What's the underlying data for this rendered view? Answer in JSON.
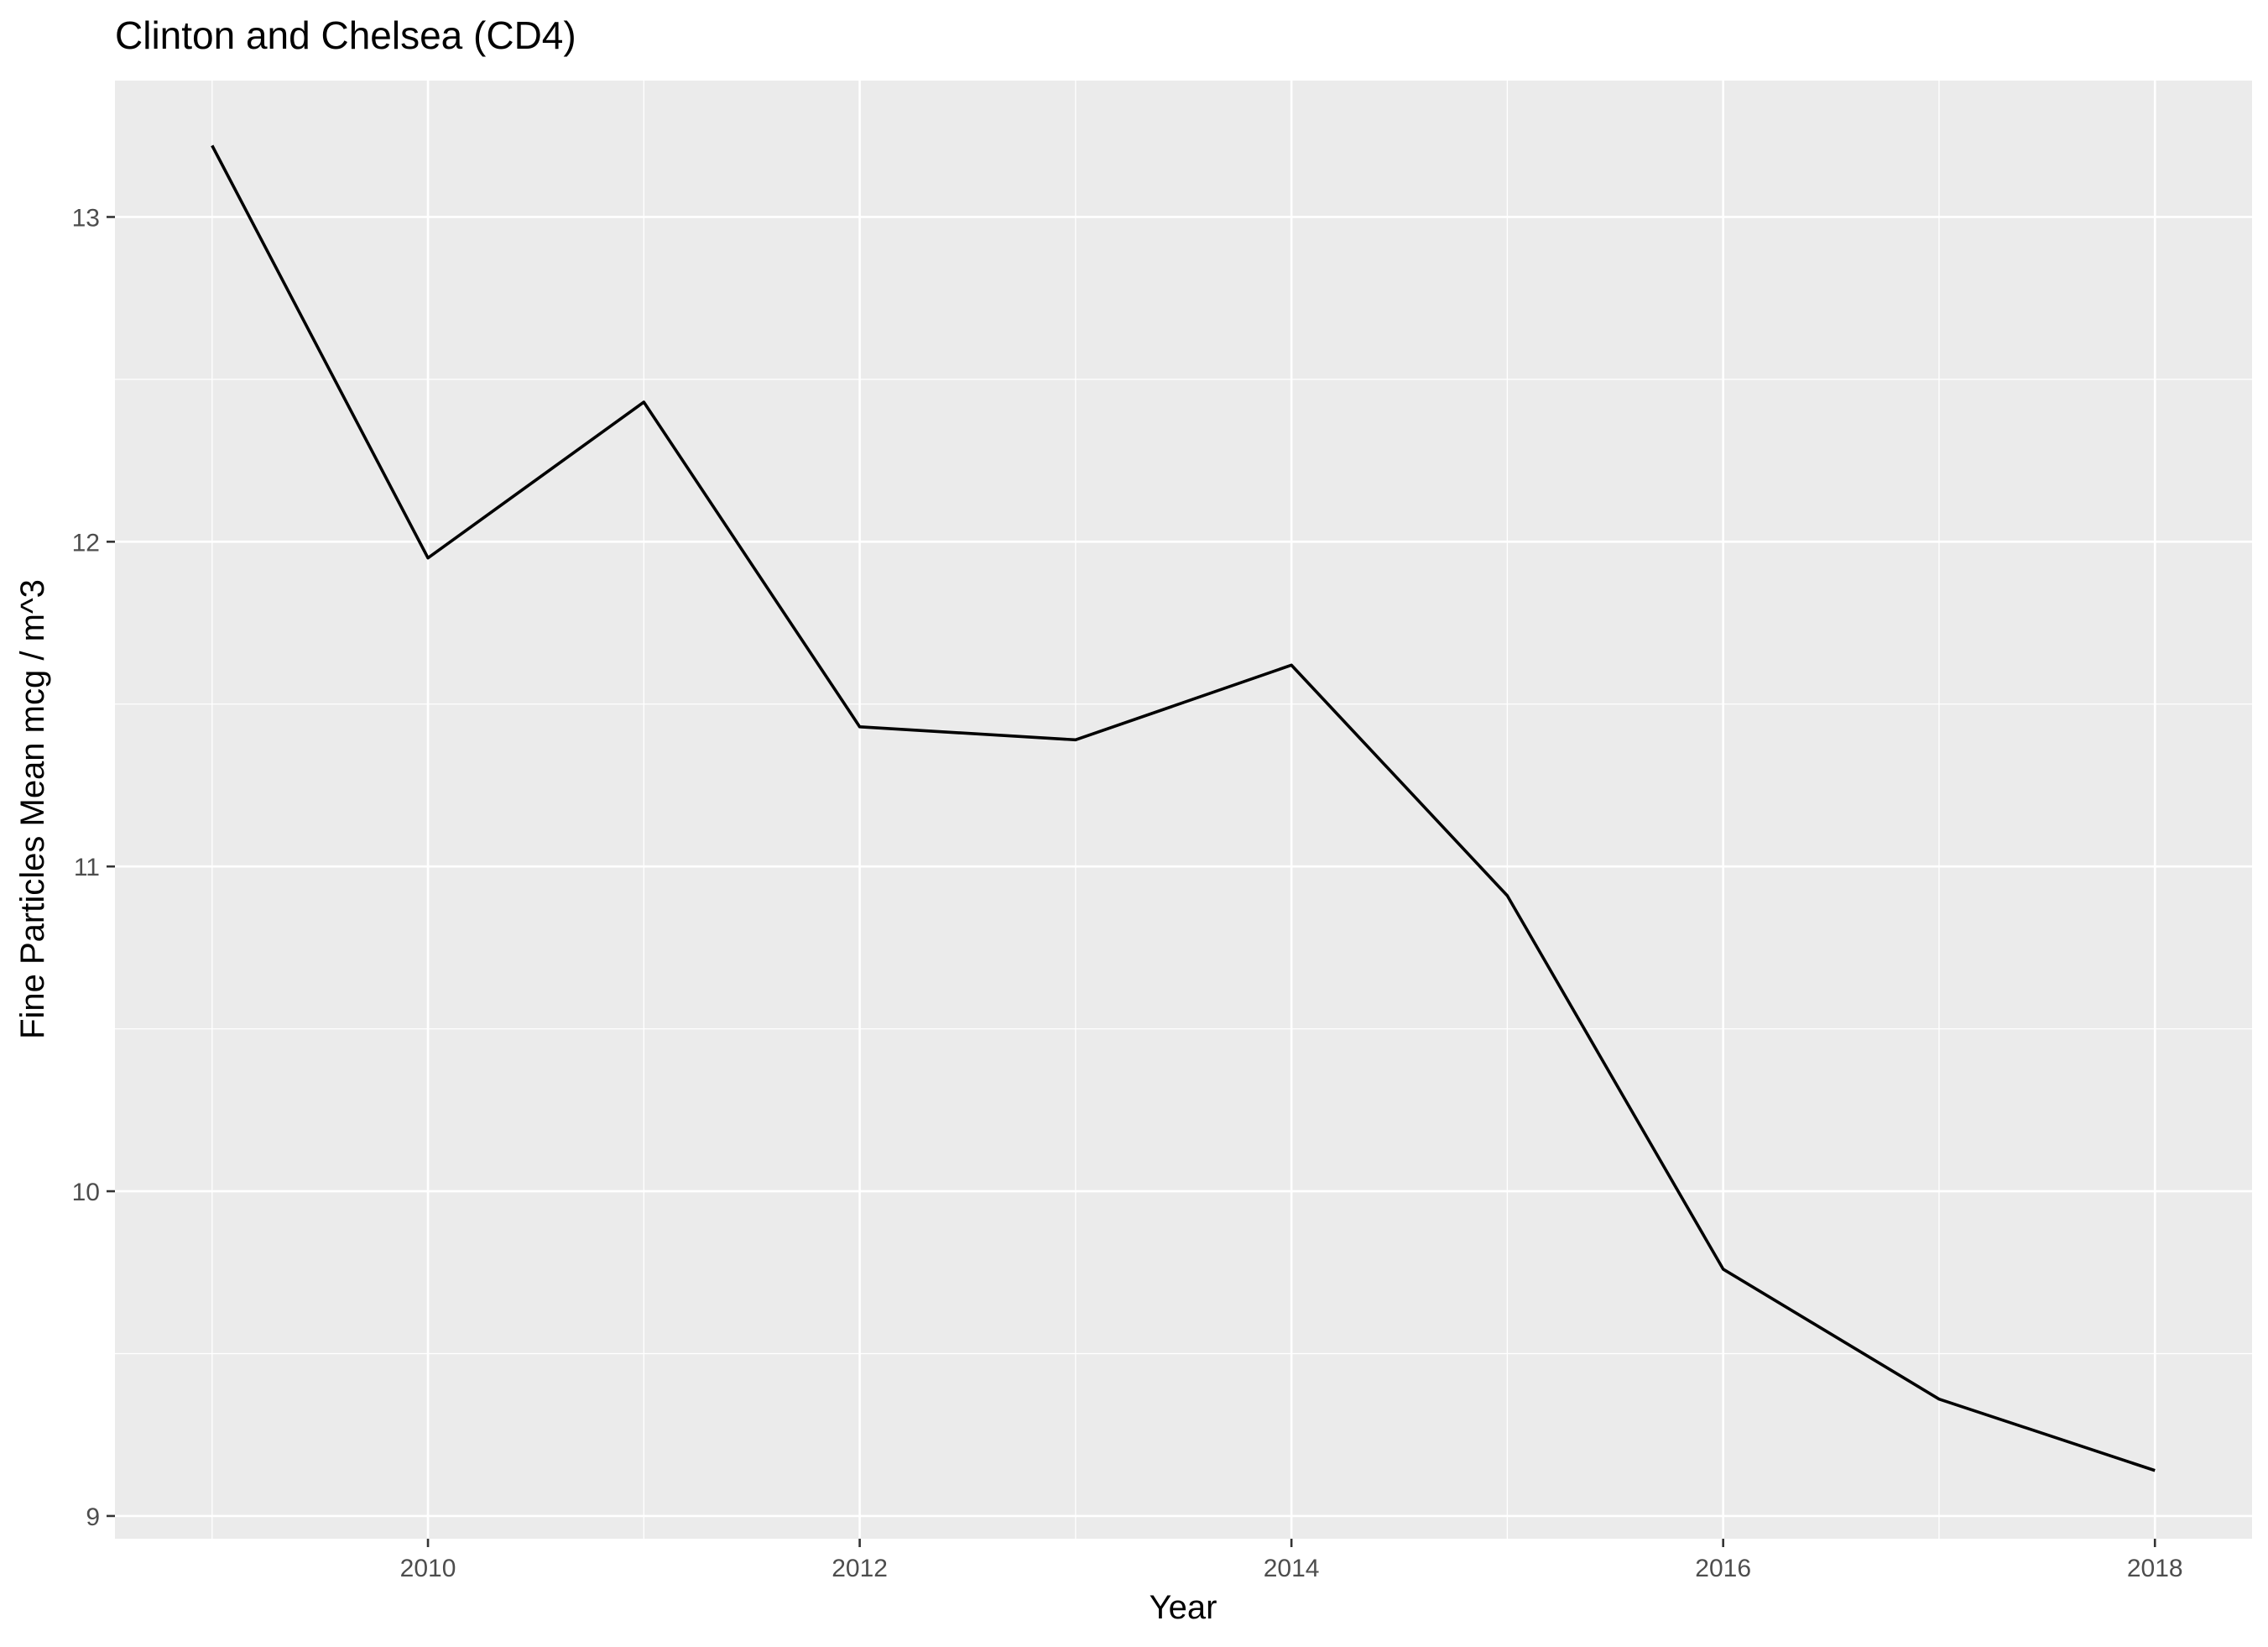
{
  "chart_data": {
    "type": "line",
    "title": "Clinton and Chelsea (CD4)",
    "xlabel": "Year",
    "ylabel": "Fine Particles Mean mcg / m^3",
    "xlim": [
      2008.55,
      2018.45
    ],
    "ylim": [
      8.93,
      13.42
    ],
    "x_ticks": [
      2010,
      2012,
      2014,
      2016,
      2018
    ],
    "x_tick_labels": [
      "2010",
      "2012",
      "2014",
      "2016",
      "2018"
    ],
    "y_ticks": [
      9,
      10,
      11,
      12,
      13
    ],
    "y_tick_labels": [
      "9",
      "10",
      "11",
      "12",
      "13"
    ],
    "grid": true,
    "legend": "none",
    "series": [
      {
        "name": "Clinton and Chelsea (CD4)",
        "color": "#000000",
        "x": [
          2009,
          2010,
          2011,
          2012,
          2013,
          2014,
          2015,
          2016,
          2017,
          2018
        ],
        "values": [
          13.22,
          11.95,
          12.43,
          11.43,
          11.39,
          11.62,
          10.91,
          9.76,
          9.36,
          9.14
        ]
      }
    ]
  }
}
